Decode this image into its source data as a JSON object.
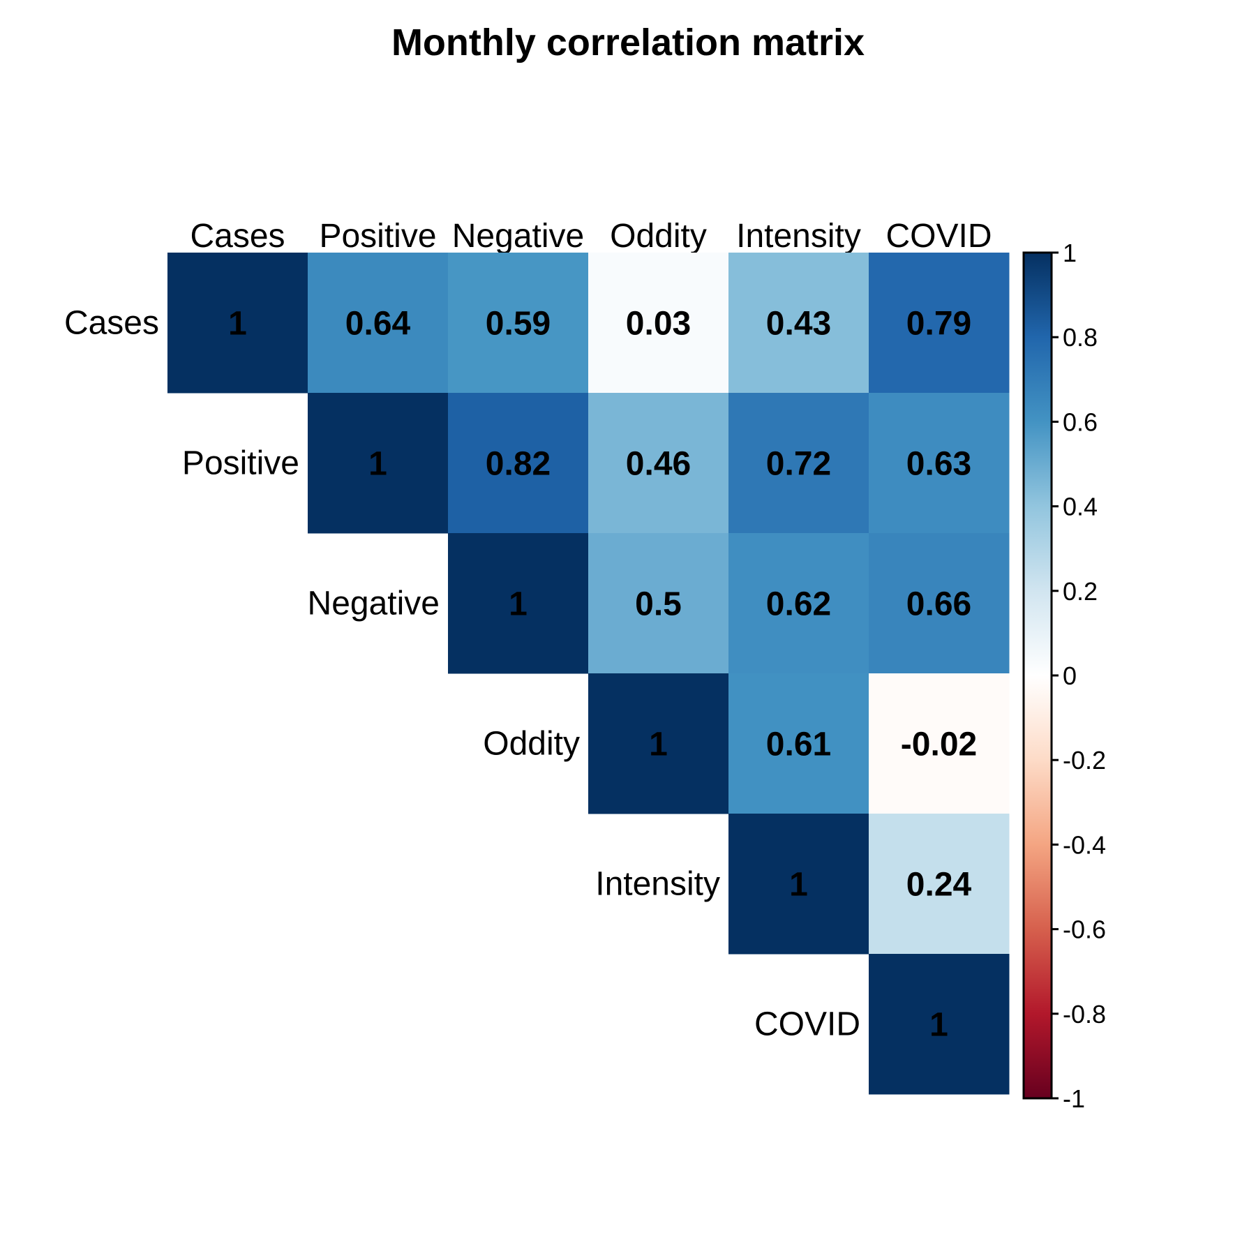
{
  "chart_data": {
    "type": "heatmap",
    "title": "Monthly correlation matrix",
    "variables": [
      "Cases",
      "Positive",
      "Negative",
      "Oddity",
      "Intensity",
      "COVID"
    ],
    "matrix": [
      [
        1,
        0.64,
        0.59,
        0.03,
        0.43,
        0.79
      ],
      [
        null,
        1,
        0.82,
        0.46,
        0.72,
        0.63
      ],
      [
        null,
        null,
        1,
        0.5,
        0.62,
        0.66
      ],
      [
        null,
        null,
        null,
        1,
        0.61,
        -0.02
      ],
      [
        null,
        null,
        null,
        null,
        1,
        0.24
      ],
      [
        null,
        null,
        null,
        null,
        null,
        1
      ]
    ],
    "layout": "upper-triangle",
    "colorbar": {
      "range": [
        -1,
        1
      ],
      "ticks": [
        "1",
        "0.8",
        "0.6",
        "0.4",
        "0.2",
        "0",
        "-0.2",
        "-0.4",
        "-0.6",
        "-0.8",
        "-1"
      ],
      "palette": [
        "#67001F",
        "#B2182B",
        "#D6604D",
        "#F4A582",
        "#FDDBC7",
        "#FFFFFF",
        "#D1E5F0",
        "#92C5DE",
        "#4393C3",
        "#2166AC",
        "#053061"
      ]
    }
  }
}
